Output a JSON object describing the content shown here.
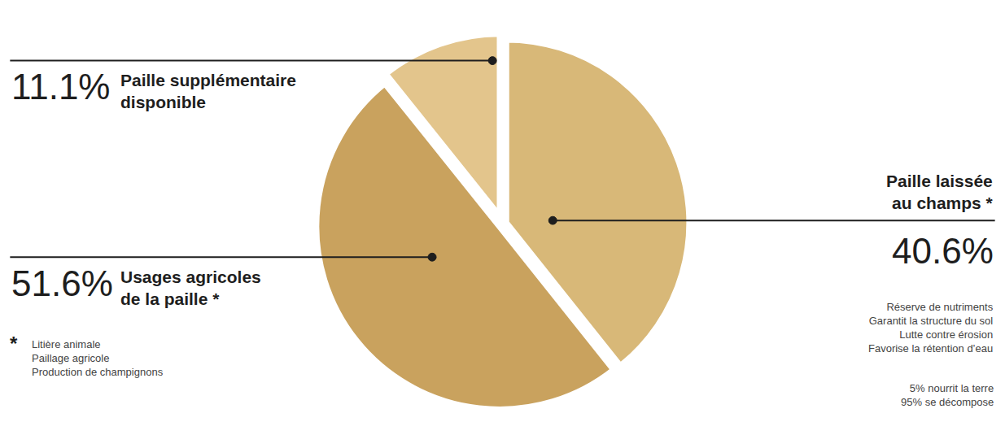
{
  "chart_data": {
    "type": "pie",
    "categories": [
      "Paille laissée au champs *",
      "Usages agricoles de la paille *",
      "Paille supplémentaire disponible"
    ],
    "values": [
      40.6,
      51.6,
      11.1
    ],
    "value_labels": [
      "40.6%",
      "51.6%",
      "11.1%"
    ],
    "colors": [
      "#d8b878",
      "#c9a25e",
      "#e3c58c"
    ],
    "data_labels": true,
    "annotations": [
      {
        "marker": "*",
        "lines": [
          "Litière animale",
          "Paillage agricole",
          "Production de champignons"
        ]
      },
      {
        "lines": [
          "Réserve de nutriments",
          "Garantit la structure du sol",
          "Lutte contre érosion",
          "Favorise la rétention d’eau"
        ]
      },
      {
        "lines": [
          "5% nourrit la terre",
          "95% se décompose"
        ]
      }
    ]
  }
}
